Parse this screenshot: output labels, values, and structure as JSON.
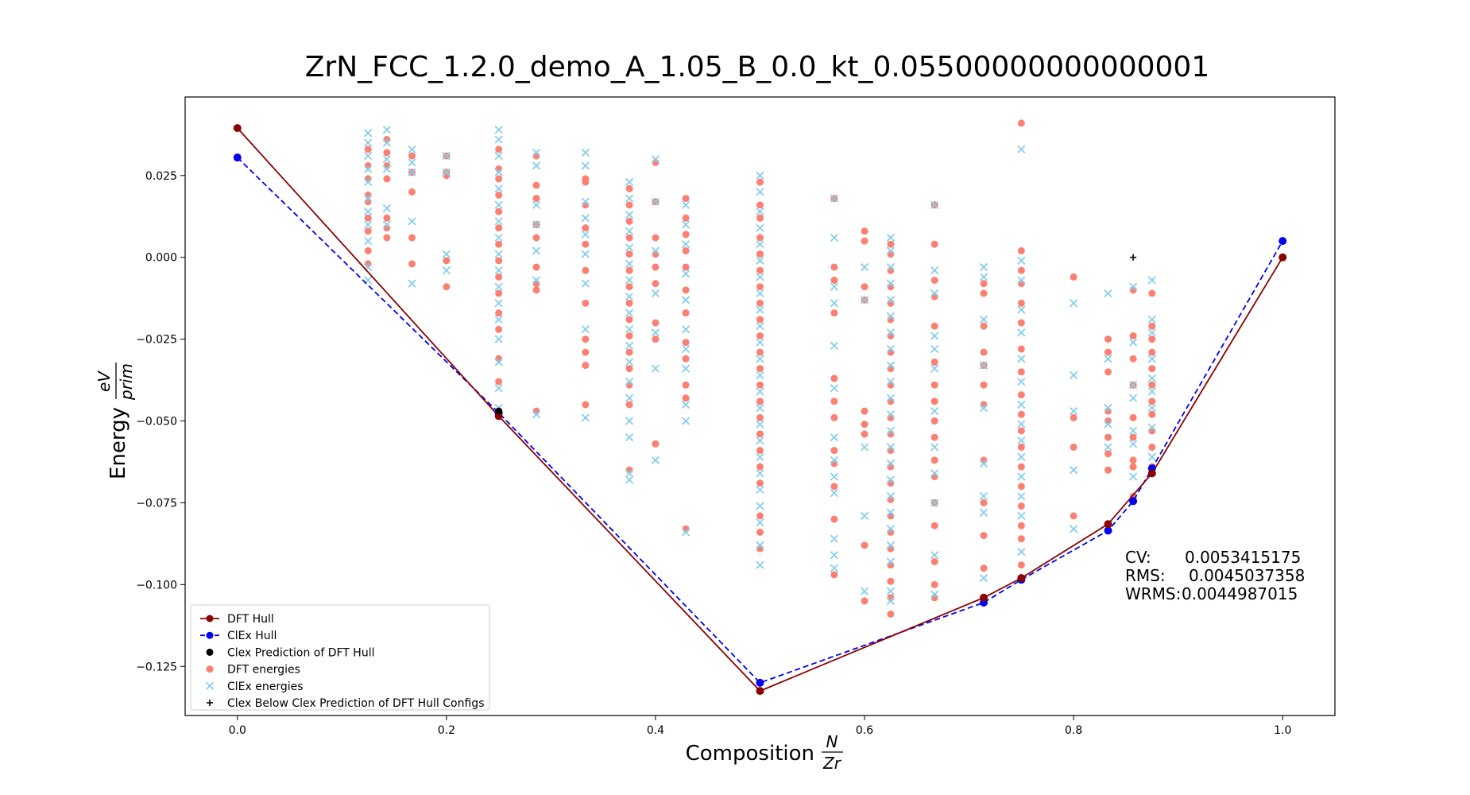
{
  "chart_data": {
    "type": "scatter",
    "title": "ZrN_FCC_1.2.0_demo_A_1.05_B_0.0_kt_0.05500000000000001",
    "xlabel": "Composition",
    "xlabel_num": "N",
    "xlabel_den": "Zr",
    "ylabel": "Energy",
    "ylabel_num": "eV",
    "ylabel_den": "prim",
    "xlim": [
      -0.05,
      1.05
    ],
    "ylim": [
      -0.14,
      0.049
    ],
    "xticks": [
      0.0,
      0.2,
      0.4,
      0.6,
      0.8,
      1.0
    ],
    "xtick_labels": [
      "0.0",
      "0.2",
      "0.4",
      "0.6",
      "0.8",
      "1.0"
    ],
    "yticks": [
      -0.125,
      -0.1,
      -0.075,
      -0.05,
      -0.025,
      0.0,
      0.025
    ],
    "ytick_labels": [
      "−0.125",
      "−0.100",
      "−0.075",
      "−0.050",
      "−0.025",
      "0.000",
      "0.025"
    ],
    "grid": false,
    "legend_position": "lower-left",
    "colors": {
      "dft_hull": "#8b0000",
      "clex_hull": "#0000ee",
      "clex_pred": "#000000",
      "dft_energies": "#fa8072",
      "clex_energies": "#87ceeb",
      "clex_below": "#000000"
    },
    "stats": {
      "cv_label": "CV:",
      "cv_value": "0.0053415175",
      "rms_label": "RMS:",
      "rms_value": "0.0045037358",
      "wrms_label": "WRMS:",
      "wrms_value": "0.0044987015"
    },
    "series": [
      {
        "name": "DFT Hull",
        "kind": "line-solid",
        "x": [
          0.0,
          0.25,
          0.5,
          0.714,
          0.75,
          0.833,
          0.875,
          1.0
        ],
        "y": [
          0.0395,
          -0.0485,
          -0.1325,
          -0.104,
          -0.098,
          -0.0815,
          -0.066,
          0.0
        ]
      },
      {
        "name": "ClEx Hull",
        "kind": "line-dashed",
        "x": [
          0.0,
          0.25,
          0.5,
          0.714,
          0.75,
          0.833,
          0.857,
          0.875,
          1.0
        ],
        "y": [
          0.0305,
          -0.0475,
          -0.13,
          -0.1055,
          -0.0985,
          -0.0835,
          -0.0745,
          -0.0645,
          0.005
        ]
      },
      {
        "name": "Clex Prediction of DFT Hull",
        "kind": "dot",
        "x": [
          0.25
        ],
        "y": [
          -0.047
        ]
      },
      {
        "name": "DFT energies",
        "kind": "dots",
        "columns": [
          {
            "x": 0.125,
            "y": [
              0.033,
              0.028,
              0.024,
              0.019,
              0.017,
              0.012,
              0.008,
              0.002,
              -0.002
            ]
          },
          {
            "x": 0.143,
            "y": [
              0.036,
              0.032,
              0.028,
              0.024,
              0.012,
              0.009,
              0.006
            ]
          },
          {
            "x": 0.167,
            "y": [
              0.031,
              0.026,
              0.02,
              0.006,
              -0.002
            ]
          },
          {
            "x": 0.2,
            "y": [
              0.031,
              0.026,
              0.025,
              -0.001,
              -0.009
            ]
          },
          {
            "x": 0.25,
            "y": [
              0.033,
              0.027,
              0.024,
              0.019,
              0.014,
              0.009,
              0.004,
              -0.001,
              -0.006,
              -0.011,
              -0.017,
              -0.022,
              -0.031,
              -0.038,
              -0.047
            ]
          },
          {
            "x": 0.286,
            "y": [
              0.031,
              0.022,
              0.018,
              0.01,
              0.006,
              -0.003,
              -0.008,
              -0.01,
              -0.047
            ]
          },
          {
            "x": 0.333,
            "y": [
              0.024,
              0.023,
              0.016,
              0.009,
              0.004,
              -0.004,
              -0.014,
              -0.025,
              -0.029,
              -0.033,
              -0.045
            ]
          },
          {
            "x": 0.375,
            "y": [
              0.021,
              0.016,
              0.011,
              0.006,
              0.001,
              -0.004,
              -0.009,
              -0.014,
              -0.019,
              -0.024,
              -0.029,
              -0.034,
              -0.039,
              -0.045,
              -0.065
            ]
          },
          {
            "x": 0.4,
            "y": [
              0.029,
              0.017,
              0.006,
              0.001,
              -0.003,
              -0.008,
              -0.02,
              -0.025,
              -0.057,
              -0.057
            ]
          },
          {
            "x": 0.429,
            "y": [
              0.018,
              0.012,
              0.007,
              0.002,
              -0.003,
              -0.01,
              -0.017,
              -0.026,
              -0.031,
              -0.039,
              -0.043,
              -0.083
            ]
          },
          {
            "x": 0.5,
            "y": [
              0.023,
              0.016,
              0.012,
              0.006,
              0.001,
              -0.004,
              -0.009,
              -0.014,
              -0.019,
              -0.024,
              -0.029,
              -0.034,
              -0.039,
              -0.044,
              -0.049,
              -0.054,
              -0.059,
              -0.064,
              -0.069,
              -0.079,
              -0.084,
              -0.089
            ]
          },
          {
            "x": 0.571,
            "y": [
              0.018,
              -0.003,
              -0.007,
              -0.017,
              -0.037,
              -0.044,
              -0.049,
              -0.059,
              -0.063,
              -0.07,
              -0.08,
              -0.097
            ]
          },
          {
            "x": 0.6,
            "y": [
              0.008,
              0.005,
              -0.009,
              -0.013,
              -0.047,
              -0.051,
              -0.054,
              -0.088,
              -0.105
            ]
          },
          {
            "x": 0.625,
            "y": [
              0.004,
              0.001,
              -0.004,
              -0.009,
              -0.014,
              -0.019,
              -0.024,
              -0.029,
              -0.034,
              -0.039,
              -0.044,
              -0.049,
              -0.054,
              -0.059,
              -0.064,
              -0.069,
              -0.074,
              -0.079,
              -0.084,
              -0.089,
              -0.094,
              -0.099,
              -0.104,
              -0.109
            ]
          },
          {
            "x": 0.667,
            "y": [
              0.016,
              0.004,
              -0.007,
              -0.012,
              -0.021,
              -0.032,
              -0.039,
              -0.044,
              -0.05,
              -0.055,
              -0.062,
              -0.067,
              -0.075,
              -0.082,
              -0.093,
              -0.1,
              -0.104
            ]
          },
          {
            "x": 0.714,
            "y": [
              -0.008,
              -0.011,
              -0.021,
              -0.029,
              -0.033,
              -0.039,
              -0.045,
              -0.062,
              -0.075,
              -0.085,
              -0.095
            ]
          },
          {
            "x": 0.75,
            "y": [
              0.041,
              0.002,
              -0.004,
              -0.008,
              -0.014,
              -0.02,
              -0.028,
              -0.035,
              -0.042,
              -0.048,
              -0.053,
              -0.058,
              -0.064,
              -0.07,
              -0.076,
              -0.082,
              -0.086,
              -0.094
            ]
          },
          {
            "x": 0.8,
            "y": [
              -0.006,
              -0.049,
              -0.058,
              -0.079
            ]
          },
          {
            "x": 0.833,
            "y": [
              -0.025,
              -0.029,
              -0.035,
              -0.047,
              -0.05,
              -0.055,
              -0.06,
              -0.065
            ]
          },
          {
            "x": 0.857,
            "y": [
              -0.01,
              -0.024,
              -0.031,
              -0.039,
              -0.049,
              -0.055,
              -0.062,
              -0.064,
              -0.073
            ]
          },
          {
            "x": 0.875,
            "y": [
              -0.011,
              -0.021,
              -0.025,
              -0.029,
              -0.034,
              -0.039,
              -0.044,
              -0.048,
              -0.053,
              -0.058,
              -0.064
            ]
          }
        ]
      },
      {
        "name": "ClEx energies",
        "kind": "crosses",
        "columns": [
          {
            "x": 0.125,
            "y": [
              0.038,
              0.035,
              0.031,
              0.027,
              0.023,
              0.018,
              0.014,
              0.01,
              0.005,
              -0.003,
              -0.007
            ]
          },
          {
            "x": 0.143,
            "y": [
              0.039,
              0.035,
              0.03,
              0.027,
              0.015,
              0.01
            ]
          },
          {
            "x": 0.167,
            "y": [
              0.033,
              0.029,
              0.026,
              0.011,
              -0.008
            ]
          },
          {
            "x": 0.2,
            "y": [
              0.031,
              0.026,
              0.001,
              -0.004
            ]
          },
          {
            "x": 0.25,
            "y": [
              0.039,
              0.036,
              0.031,
              0.026,
              0.021,
              0.016,
              0.011,
              0.006,
              0.001,
              -0.004,
              -0.009,
              -0.014,
              -0.019,
              -0.025,
              -0.032,
              -0.04,
              -0.046
            ]
          },
          {
            "x": 0.286,
            "y": [
              0.032,
              0.028,
              0.016,
              0.01,
              0.002,
              -0.007,
              -0.048
            ]
          },
          {
            "x": 0.333,
            "y": [
              0.032,
              0.028,
              0.017,
              0.012,
              0.007,
              0.001,
              -0.008,
              -0.022,
              -0.049
            ]
          },
          {
            "x": 0.375,
            "y": [
              0.023,
              0.018,
              0.013,
              0.008,
              0.003,
              -0.002,
              -0.007,
              -0.012,
              -0.017,
              -0.022,
              -0.027,
              -0.032,
              -0.038,
              -0.043,
              -0.05,
              -0.055,
              -0.066,
              -0.068
            ]
          },
          {
            "x": 0.4,
            "y": [
              0.03,
              0.017,
              0.002,
              -0.011,
              -0.023,
              -0.034,
              -0.062
            ]
          },
          {
            "x": 0.429,
            "y": [
              0.016,
              0.01,
              0.004,
              -0.005,
              -0.013,
              -0.022,
              -0.028,
              -0.034,
              -0.045,
              -0.05,
              -0.084
            ]
          },
          {
            "x": 0.5,
            "y": [
              0.025,
              0.02,
              0.014,
              0.009,
              0.004,
              -0.001,
              -0.006,
              -0.011,
              -0.016,
              -0.021,
              -0.026,
              -0.031,
              -0.036,
              -0.041,
              -0.046,
              -0.051,
              -0.056,
              -0.061,
              -0.066,
              -0.071,
              -0.076,
              -0.081,
              -0.088,
              -0.094
            ]
          },
          {
            "x": 0.571,
            "y": [
              0.018,
              0.006,
              -0.009,
              -0.014,
              -0.027,
              -0.04,
              -0.055,
              -0.062,
              -0.067,
              -0.072,
              -0.086,
              -0.091,
              -0.095
            ]
          },
          {
            "x": 0.6,
            "y": [
              -0.003,
              -0.013,
              -0.058,
              -0.079,
              -0.102
            ]
          },
          {
            "x": 0.625,
            "y": [
              0.006,
              0.002,
              -0.003,
              -0.008,
              -0.013,
              -0.018,
              -0.023,
              -0.028,
              -0.033,
              -0.038,
              -0.043,
              -0.048,
              -0.053,
              -0.058,
              -0.063,
              -0.068,
              -0.073,
              -0.078,
              -0.083,
              -0.088,
              -0.093,
              -0.102,
              -0.105
            ]
          },
          {
            "x": 0.667,
            "y": [
              0.016,
              -0.004,
              -0.011,
              -0.024,
              -0.028,
              -0.034,
              -0.047,
              -0.058,
              -0.066,
              -0.075,
              -0.091,
              -0.103
            ]
          },
          {
            "x": 0.714,
            "y": [
              -0.003,
              -0.006,
              -0.019,
              -0.033,
              -0.046,
              -0.063,
              -0.073,
              -0.078,
              -0.098
            ]
          },
          {
            "x": 0.75,
            "y": [
              0.033,
              -0.001,
              -0.007,
              -0.016,
              -0.023,
              -0.031,
              -0.038,
              -0.045,
              -0.051,
              -0.056,
              -0.061,
              -0.067,
              -0.073,
              -0.079,
              -0.09
            ]
          },
          {
            "x": 0.8,
            "y": [
              -0.014,
              -0.036,
              -0.047,
              -0.065,
              -0.083
            ]
          },
          {
            "x": 0.833,
            "y": [
              -0.011,
              -0.031,
              -0.046,
              -0.051,
              -0.058
            ]
          },
          {
            "x": 0.857,
            "y": [
              -0.009,
              -0.026,
              -0.039,
              -0.043,
              -0.053,
              -0.057,
              -0.067
            ]
          },
          {
            "x": 0.875,
            "y": [
              -0.007,
              -0.019,
              -0.023,
              -0.031,
              -0.037,
              -0.041,
              -0.046,
              -0.052,
              -0.061
            ]
          }
        ]
      },
      {
        "name": "Clex Below Clex Prediction of DFT Hull Configs",
        "kind": "plus",
        "x": [
          0.857
        ],
        "y": [
          0.0
        ]
      }
    ]
  }
}
